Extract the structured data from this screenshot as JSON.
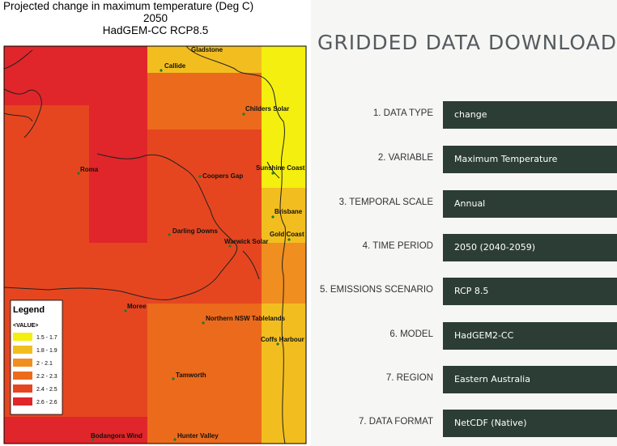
{
  "map": {
    "title_line1": "Projected change in maximum temperature (Deg C)",
    "title_line2": "2050",
    "title_line3": "HadGEM-CC RCP8.5",
    "legend": {
      "title": "Legend",
      "subtitle": "<VALUE>",
      "items": [
        {
          "label": "1.5 - 1.7",
          "color": "#f4ef0f"
        },
        {
          "label": "1.8 - 1.9",
          "color": "#f2be1f"
        },
        {
          "label": "2 - 2.1",
          "color": "#f08e20"
        },
        {
          "label": "2.2 - 2.3",
          "color": "#ec6a1c"
        },
        {
          "label": "2.4 - 2.5",
          "color": "#e54620"
        },
        {
          "label": "2.6 - 2.6",
          "color": "#e0262a"
        }
      ]
    },
    "places": [
      {
        "name": "Gladstone"
      },
      {
        "name": "Callide"
      },
      {
        "name": "Childers Solar"
      },
      {
        "name": "Roma"
      },
      {
        "name": "Coopers Gap"
      },
      {
        "name": "Sunshine Coast"
      },
      {
        "name": "Brisbane"
      },
      {
        "name": "Darling Downs"
      },
      {
        "name": "Gold Coast"
      },
      {
        "name": "Warwick Solar"
      },
      {
        "name": "Moree"
      },
      {
        "name": "Northern NSW Tablelands"
      },
      {
        "name": "Coffs Harbour"
      },
      {
        "name": "Tamworth"
      },
      {
        "name": "Bodangora Wind"
      },
      {
        "name": "Hunter Valley"
      }
    ]
  },
  "form": {
    "heading": "GRIDDED DATA DOWNLOAD",
    "rows": [
      {
        "label": "1. DATA TYPE",
        "value": "change"
      },
      {
        "label": "2. VARIABLE",
        "value": "Maximum Temperature"
      },
      {
        "label": "3. TEMPORAL SCALE",
        "value": "Annual"
      },
      {
        "label": "4. TIME PERIOD",
        "value": "2050 (2040-2059)"
      },
      {
        "label": "5. EMISSIONS SCENARIO",
        "value": "RCP 8.5"
      },
      {
        "label": "6. MODEL",
        "value": "HadGEM2-CC"
      },
      {
        "label": "7. REGION",
        "value": "Eastern Australia"
      },
      {
        "label": "7. DATA FORMAT",
        "value": "NetCDF (Native)"
      }
    ]
  }
}
